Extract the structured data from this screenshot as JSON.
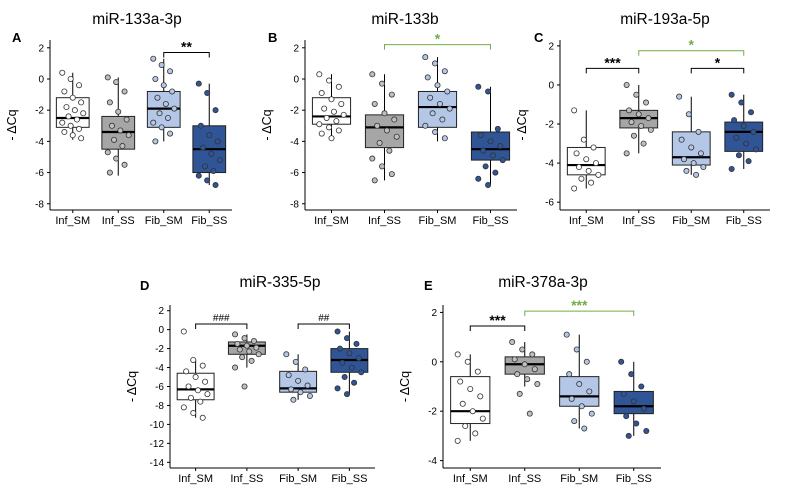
{
  "colors": {
    "Inf_SM": "#ffffff",
    "Inf_SS": "#a6a6a6",
    "Fib_SM": "#b4c7e7",
    "Fib_SS": "#2f5597",
    "axis": "#000000",
    "sig_black": "#000000",
    "sig_green": "#70ad47"
  },
  "chart_data": [
    {
      "type": "box",
      "label": "A",
      "title": "miR-133a-3p",
      "ylabel": "- ΔCq",
      "categories": [
        "Inf_SM",
        "Inf_SS",
        "Fib_SM",
        "Fib_SS"
      ],
      "ylim": [
        -8.4,
        2.5
      ],
      "yticks": [
        2,
        0,
        -2,
        -4,
        -6,
        -8
      ],
      "boxes": [
        {
          "q1": -3.1,
          "median": -2.5,
          "q3": -1.2,
          "whisker_low": -3.9,
          "whisker_high": 0.4
        },
        {
          "q1": -4.5,
          "median": -3.4,
          "q3": -2.4,
          "whisker_low": -6.2,
          "whisker_high": 0.1
        },
        {
          "q1": -3.1,
          "median": -1.9,
          "q3": -0.8,
          "whisker_low": -4.0,
          "whisker_high": 1.3
        },
        {
          "q1": -6.0,
          "median": -4.5,
          "q3": -3.0,
          "whisker_low": -6.8,
          "whisker_high": -0.3
        }
      ],
      "points": [
        [
          0.4,
          0.0,
          -0.4,
          -0.8,
          -1.2,
          -1.5,
          -1.8,
          -2.0,
          -2.2,
          -2.4,
          -2.6,
          -2.8,
          -3.0,
          -3.2,
          -3.4,
          -3.6,
          -3.8
        ],
        [
          0.1,
          -0.2,
          -0.8,
          -1.5,
          -2.1,
          -2.6,
          -3.0,
          -3.3,
          -3.6,
          -3.9,
          -4.3,
          -4.7,
          -5.1,
          -5.5,
          -6.0
        ],
        [
          1.3,
          0.9,
          0.5,
          0.0,
          -0.4,
          -0.8,
          -1.2,
          -1.6,
          -1.9,
          -2.2,
          -2.5,
          -2.8,
          -3.1,
          -3.5,
          -4.0
        ],
        [
          -0.3,
          -0.9,
          -2.0,
          -3.0,
          -3.6,
          -4.0,
          -4.4,
          -4.8,
          -5.2,
          -5.6,
          -5.9,
          -6.2,
          -6.5,
          -6.8
        ]
      ],
      "brackets": [
        {
          "from": 2,
          "to": 3,
          "y": 1.7,
          "label": "**",
          "color": "black"
        }
      ]
    },
    {
      "type": "box",
      "label": "B",
      "title": "miR-133b",
      "ylabel": "- ΔCq",
      "categories": [
        "Inf_SM",
        "Inf_SS",
        "Fib_SM",
        "Fib_SS"
      ],
      "ylim": [
        -8.4,
        2.5
      ],
      "yticks": [
        2,
        0,
        -2,
        -4,
        -6,
        -8
      ],
      "boxes": [
        {
          "q1": -2.9,
          "median": -2.4,
          "q3": -1.2,
          "whisker_low": -3.8,
          "whisker_high": 0.3
        },
        {
          "q1": -4.4,
          "median": -3.1,
          "q3": -2.3,
          "whisker_low": -6.5,
          "whisker_high": 0.3
        },
        {
          "q1": -3.1,
          "median": -1.8,
          "q3": -0.8,
          "whisker_low": -4.0,
          "whisker_high": 1.4
        },
        {
          "q1": -5.2,
          "median": -4.5,
          "q3": -3.4,
          "whisker_low": -6.8,
          "whisker_high": -0.5
        }
      ],
      "points": [
        [
          0.3,
          -0.1,
          -0.5,
          -0.9,
          -1.3,
          -1.6,
          -1.9,
          -2.1,
          -2.3,
          -2.5,
          -2.7,
          -2.9,
          -3.1,
          -3.3,
          -3.5,
          -3.8
        ],
        [
          0.3,
          -0.3,
          -1.0,
          -1.6,
          -2.2,
          -2.6,
          -3.0,
          -3.3,
          -3.7,
          -4.1,
          -4.6,
          -5.1,
          -5.6,
          -6.1,
          -6.5
        ],
        [
          1.4,
          1.0,
          0.5,
          0.1,
          -0.4,
          -0.8,
          -1.2,
          -1.6,
          -1.9,
          -2.2,
          -2.6,
          -3.0,
          -3.4,
          -3.8
        ],
        [
          -0.5,
          -0.8,
          -3.2,
          -3.6,
          -4.0,
          -4.3,
          -4.6,
          -4.9,
          -5.2,
          -5.6,
          -6.0,
          -6.4,
          -6.8
        ]
      ],
      "brackets": [
        {
          "from": 1,
          "to": 3,
          "y": 2.2,
          "label": "*",
          "color": "green"
        }
      ]
    },
    {
      "type": "box",
      "label": "C",
      "title": "miR-193a-5p",
      "ylabel": "- ΔCq",
      "categories": [
        "Inf_SM",
        "Inf_SS",
        "Fib_SM",
        "Fib_SS"
      ],
      "ylim": [
        -6.4,
        2.3
      ],
      "yticks": [
        2,
        0,
        -2,
        -4,
        -6
      ],
      "boxes": [
        {
          "q1": -4.6,
          "median": -4.1,
          "q3": -3.2,
          "whisker_low": -5.3,
          "whisker_high": -1.3
        },
        {
          "q1": -2.2,
          "median": -1.7,
          "q3": -1.3,
          "whisker_low": -3.5,
          "whisker_high": 0.0
        },
        {
          "q1": -4.1,
          "median": -3.7,
          "q3": -2.4,
          "whisker_low": -4.6,
          "whisker_high": -0.6
        },
        {
          "q1": -3.4,
          "median": -2.4,
          "q3": -1.9,
          "whisker_low": -4.3,
          "whisker_high": -0.5
        }
      ],
      "points": [
        [
          -1.3,
          -2.8,
          -3.2,
          -3.5,
          -3.8,
          -4.0,
          -4.2,
          -4.4,
          -4.6,
          -4.8,
          -5.0,
          -5.3
        ],
        [
          0.0,
          -0.5,
          -0.9,
          -1.3,
          -1.5,
          -1.7,
          -1.9,
          -2.1,
          -2.3,
          -2.6,
          -3.0,
          -3.5
        ],
        [
          -0.6,
          -1.5,
          -2.4,
          -2.8,
          -3.2,
          -3.5,
          -3.8,
          -4.0,
          -4.2,
          -4.4,
          -4.6
        ],
        [
          -0.5,
          -0.9,
          -1.4,
          -1.8,
          -2.1,
          -2.4,
          -2.7,
          -3.0,
          -3.3,
          -3.6,
          -3.9,
          -4.3
        ]
      ],
      "brackets": [
        {
          "from": 0,
          "to": 1,
          "y": 0.85,
          "label": "***",
          "color": "black"
        },
        {
          "from": 1,
          "to": 3,
          "y": 1.75,
          "label": "*",
          "color": "green"
        },
        {
          "from": 2,
          "to": 3,
          "y": 0.85,
          "label": "*",
          "color": "black"
        }
      ]
    },
    {
      "type": "box",
      "label": "D",
      "title": "miR-335-5p",
      "ylabel": "- ΔCq",
      "categories": [
        "Inf_SM",
        "Inf_SS",
        "Fib_SM",
        "Fib_SS"
      ],
      "ylim": [
        -14.6,
        2.6
      ],
      "yticks": [
        2,
        0,
        -2,
        -4,
        -6,
        -8,
        -10,
        -12,
        -14
      ],
      "boxes": [
        {
          "q1": -7.4,
          "median": -6.3,
          "q3": -4.6,
          "whisker_low": -9.3,
          "whisker_high": -3.2
        },
        {
          "q1": -2.6,
          "median": -1.7,
          "q3": -1.3,
          "whisker_low": -4.0,
          "whisker_high": -0.5
        },
        {
          "q1": -6.6,
          "median": -6.2,
          "q3": -4.4,
          "whisker_low": -7.4,
          "whisker_high": -2.6
        },
        {
          "q1": -4.5,
          "median": -3.2,
          "q3": -2.0,
          "whisker_low": -6.8,
          "whisker_high": -0.2
        }
      ],
      "points": [
        [
          -0.2,
          -3.2,
          -3.8,
          -4.4,
          -5.0,
          -5.5,
          -6.0,
          -6.4,
          -6.8,
          -7.2,
          -7.6,
          -8.2,
          -8.8,
          -9.3
        ],
        [
          -0.5,
          -0.9,
          -1.2,
          -1.5,
          -1.7,
          -1.9,
          -2.1,
          -2.3,
          -2.6,
          -2.9,
          -3.3,
          -4.0,
          -6.0
        ],
        [
          -2.6,
          -3.4,
          -4.2,
          -4.8,
          -5.4,
          -5.9,
          -6.3,
          -6.6,
          -7.0,
          -7.4
        ],
        [
          -0.2,
          -0.9,
          -1.5,
          -2.0,
          -2.5,
          -3.0,
          -3.5,
          -4.0,
          -4.5,
          -5.0,
          -5.6,
          -6.2,
          -6.8
        ]
      ],
      "brackets": [
        {
          "from": 0,
          "to": 1,
          "y": 0.6,
          "label": "###",
          "color": "black"
        },
        {
          "from": 2,
          "to": 3,
          "y": 0.6,
          "label": "##",
          "color": "black"
        }
      ]
    },
    {
      "type": "box",
      "label": "E",
      "title": "miR-378a-3p",
      "ylabel": "- ΔCq",
      "categories": [
        "Inf_SM",
        "Inf_SS",
        "Fib_SM",
        "Fib_SS"
      ],
      "ylim": [
        -4.3,
        2.3
      ],
      "yticks": [
        2,
        0,
        -2,
        -4
      ],
      "boxes": [
        {
          "q1": -2.5,
          "median": -2.0,
          "q3": -0.6,
          "whisker_low": -3.2,
          "whisker_high": 0.3
        },
        {
          "q1": -0.5,
          "median": -0.1,
          "q3": 0.2,
          "whisker_low": -1.0,
          "whisker_high": 0.8
        },
        {
          "q1": -1.8,
          "median": -1.4,
          "q3": -0.6,
          "whisker_low": -2.7,
          "whisker_high": 1.1
        },
        {
          "q1": -2.1,
          "median": -1.8,
          "q3": -1.2,
          "whisker_low": -3.0,
          "whisker_high": 0.0
        }
      ],
      "points": [
        [
          0.3,
          0.0,
          -0.4,
          -0.8,
          -1.1,
          -1.4,
          -1.7,
          -2.0,
          -2.3,
          -2.6,
          -2.9,
          -3.2
        ],
        [
          0.8,
          0.5,
          0.3,
          0.1,
          -0.1,
          -0.3,
          -0.5,
          -0.7,
          -0.9,
          -1.3,
          -2.1
        ],
        [
          1.1,
          0.5,
          0.0,
          -0.5,
          -0.9,
          -1.2,
          -1.5,
          -1.8,
          -2.1,
          -2.4,
          -2.7
        ],
        [
          0.0,
          -0.5,
          -1.0,
          -1.3,
          -1.6,
          -1.9,
          -2.2,
          -2.5,
          -2.8,
          -3.0
        ]
      ],
      "brackets": [
        {
          "from": 0,
          "to": 1,
          "y": 1.45,
          "label": "***",
          "color": "black"
        },
        {
          "from": 1,
          "to": 3,
          "y": 2.05,
          "label": "***",
          "color": "green"
        }
      ]
    }
  ]
}
